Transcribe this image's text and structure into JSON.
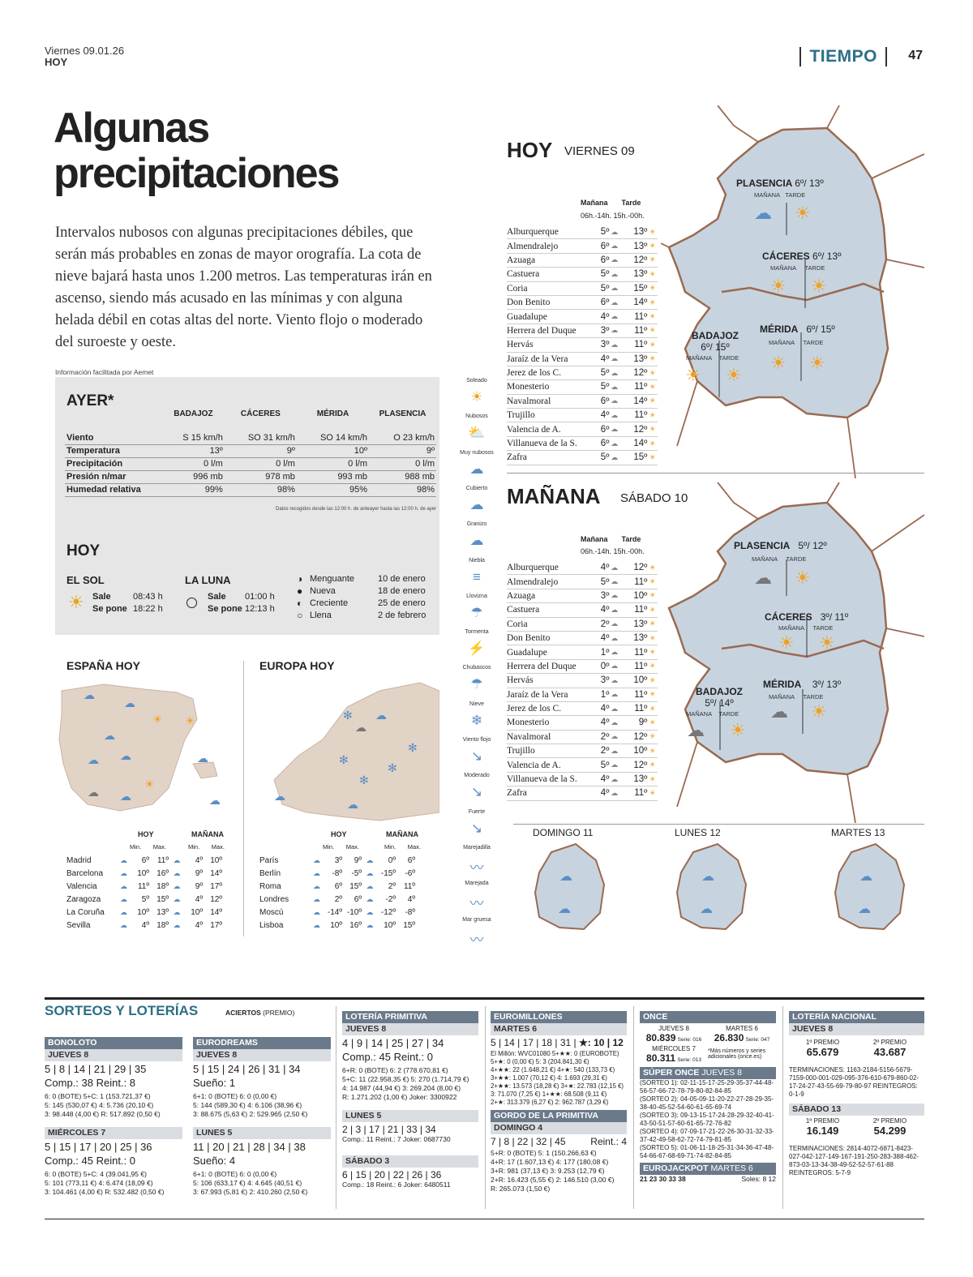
{
  "header": {
    "date": "Viernes 09.01.26",
    "paper": "HOY",
    "section": "TIEMPO",
    "page": "47"
  },
  "headline": "Algunas precipitaciones",
  "intro": "Intervalos nubosos con algunas precipitaciones débiles, que serán más probables en zonas de mayor orografía. La cota de nieve bajará hasta unos 1.200 metros. Las temperaturas irán en ascenso, siendo más acusado en las mínimas y con alguna helada débil en cotas altas del norte. Viento flojo o moderado del suroeste y oeste.",
  "credit": "Información facilitada por Aemet",
  "ayer": {
    "title": "AYER*",
    "cols": [
      "BADAJOZ",
      "CÁCERES",
      "MÉRIDA",
      "PLASENCIA"
    ],
    "rows": [
      {
        "label": "Viento",
        "vals": [
          "S 15 km/h",
          "SO 31 km/h",
          "SO 14 km/h",
          "O 23 km/h"
        ]
      },
      {
        "label": "Temperatura",
        "vals": [
          "13º",
          "9º",
          "10º",
          "9º"
        ]
      },
      {
        "label": "Precipitación",
        "vals": [
          "0 l/m",
          "0 l/m",
          "0 l/m",
          "0 l/m"
        ]
      },
      {
        "label": "Presión n/mar",
        "vals": [
          "996 mb",
          "978 mb",
          "993 mb",
          "988 mb"
        ]
      },
      {
        "label": "Humedad relativa",
        "vals": [
          "99%",
          "98%",
          "95%",
          "98%"
        ]
      }
    ],
    "note": "Datos recogidos desde las 12:00 h. de anteayer hasta las 12:00 h. de ayer"
  },
  "hoy_box": {
    "title": "HOY",
    "sol_title": "EL SOL",
    "sale_lbl": "Sale",
    "sale": "08:43 h",
    "pone_lbl": "Se pone",
    "pone": "18:22 h",
    "luna_title": "LA LUNA",
    "l_sale": "01:00 h",
    "l_pone": "12:13 h",
    "phases": [
      {
        "name": "Menguante",
        "date": "10 de enero"
      },
      {
        "name": "Nueva",
        "date": "18 de enero"
      },
      {
        "name": "Creciente",
        "date": "25 de enero"
      },
      {
        "name": "Llena",
        "date": "2 de febrero"
      }
    ]
  },
  "espana": {
    "title": "ESPAÑA HOY",
    "hoy": "HOY",
    "manana": "MAÑANA",
    "min": "Min.",
    "max": "Max.",
    "rows": [
      [
        "Madrid",
        "6º",
        "11º",
        "4º",
        "10º"
      ],
      [
        "Barcelona",
        "10º",
        "16º",
        "9º",
        "14º"
      ],
      [
        "Valencia",
        "11º",
        "18º",
        "9º",
        "17º"
      ],
      [
        "Zaragoza",
        "5º",
        "15º",
        "4º",
        "12º"
      ],
      [
        "La Coruña",
        "10º",
        "13º",
        "10º",
        "14º"
      ],
      [
        "Sevilla",
        "4º",
        "18º",
        "4º",
        "17º"
      ]
    ]
  },
  "europa": {
    "title": "EUROPA HOY",
    "rows": [
      [
        "París",
        "3º",
        "9º",
        "0º",
        "6º"
      ],
      [
        "Berlín",
        "-8º",
        "-5º",
        "-15º",
        "-6º"
      ],
      [
        "Roma",
        "6º",
        "15º",
        "2º",
        "11º"
      ],
      [
        "Londres",
        "2º",
        "6º",
        "-2º",
        "4º"
      ],
      [
        "Moscú",
        "-14º",
        "-10º",
        "-12º",
        "-8º"
      ],
      [
        "Lisboa",
        "10º",
        "16º",
        "10º",
        "15º"
      ]
    ]
  },
  "legend": [
    "Soleado",
    "Nubosos",
    "Muy nubosos",
    "Cubierto",
    "Granizo",
    "Niebla",
    "Llovizna",
    "Tormenta",
    "Chubascos",
    "Nieve",
    "Viento flojo",
    "Moderado",
    "Fuerte",
    "Marejadilla",
    "Marejada",
    "Mar gruesa"
  ],
  "hoy_forecast": {
    "title": "HOY",
    "day": "VIERNES 09",
    "col1": "Mañana",
    "col2": "Tarde",
    "sub1": "06h.-14h.",
    "sub2": "15h.-00h.",
    "rows": [
      [
        "Alburquerque",
        "5º",
        "13º"
      ],
      [
        "Almendralejo",
        "6º",
        "13º"
      ],
      [
        "Azuaga",
        "6º",
        "12º"
      ],
      [
        "Castuera",
        "5º",
        "13º"
      ],
      [
        "Coria",
        "5º",
        "15º"
      ],
      [
        "Don Benito",
        "6º",
        "14º"
      ],
      [
        "Guadalupe",
        "4º",
        "11º"
      ],
      [
        "Herrera del Duque",
        "3º",
        "11º"
      ],
      [
        "Hervás",
        "3º",
        "11º"
      ],
      [
        "Jaraíz de la Vera",
        "4º",
        "13º"
      ],
      [
        "Jerez de los C.",
        "5º",
        "12º"
      ],
      [
        "Monesterio",
        "5º",
        "11º"
      ],
      [
        "Navalmoral",
        "6º",
        "14º"
      ],
      [
        "Trujillo",
        "4º",
        "11º"
      ],
      [
        "Valencia de A.",
        "6º",
        "12º"
      ],
      [
        "Villanueva de la S.",
        "6º",
        "14º"
      ],
      [
        "Zafra",
        "5º",
        "15º"
      ]
    ],
    "map": [
      {
        "city": "PLASENCIA",
        "temp": "6º/ 13º"
      },
      {
        "city": "CÁCERES",
        "temp": "6º/ 13º"
      },
      {
        "city": "BADAJOZ",
        "temp": "6º/ 15º"
      },
      {
        "city": "MÉRIDA",
        "temp": "6º/ 15º"
      }
    ]
  },
  "man_forecast": {
    "title": "MAÑANA",
    "day": "SÁBADO 10",
    "rows": [
      [
        "Alburquerque",
        "4º",
        "12º"
      ],
      [
        "Almendralejo",
        "5º",
        "11º"
      ],
      [
        "Azuaga",
        "3º",
        "10º"
      ],
      [
        "Castuera",
        "4º",
        "11º"
      ],
      [
        "Coria",
        "2º",
        "13º"
      ],
      [
        "Don Benito",
        "4º",
        "13º"
      ],
      [
        "Guadalupe",
        "1º",
        "11º"
      ],
      [
        "Herrera del Duque",
        "0º",
        "11º"
      ],
      [
        "Hervás",
        "3º",
        "10º"
      ],
      [
        "Jaraíz de la Vera",
        "1º",
        "11º"
      ],
      [
        "Jerez de los C.",
        "4º",
        "11º"
      ],
      [
        "Monesterio",
        "4º",
        "9º"
      ],
      [
        "Navalmoral",
        "2º",
        "12º"
      ],
      [
        "Trujillo",
        "2º",
        "10º"
      ],
      [
        "Valencia de A.",
        "5º",
        "12º"
      ],
      [
        "Villanueva de la S.",
        "4º",
        "13º"
      ],
      [
        "Zafra",
        "4º",
        "11º"
      ]
    ],
    "map": [
      {
        "city": "PLASENCIA",
        "temp": "5º/ 12º"
      },
      {
        "city": "CÁCERES",
        "temp": "3º/ 11º"
      },
      {
        "city": "BADAJOZ",
        "temp": "5º/ 14º"
      },
      {
        "city": "MÉRIDA",
        "temp": "3º/ 13º"
      }
    ]
  },
  "map_labels": {
    "manana": "MAÑANA",
    "tarde": "TARDE"
  },
  "next_days": [
    "DOMINGO 11",
    "LUNES 12",
    "MARTES 13"
  ],
  "sorteos": {
    "title": "SORTEOS Y LOTERÍAS",
    "sub": "ACIERTOS",
    "sub2": "(PREMIO)",
    "bonoloto": {
      "head": "BONOLOTO",
      "d1": "JUEVES 8",
      "n1": "5 | 8 | 14 | 21 | 29 | 35",
      "c1": "Comp.: 38 Reint.: 8",
      "p1": [
        "6: 0 (BOTE) 5+C: 1 (153.721,37 €)",
        "5: 145 (530,07 €) 4: 5.736 (20,10 €)",
        "3: 98.448 (4,00 €) R: 517.892 (0,50 €)"
      ],
      "d2": "MIÉRCOLES 7",
      "n2": "5 | 15 | 17 | 20 | 25 | 36",
      "c2": "Comp.: 45 Reint.: 0",
      "p2": [
        "6: 0 (BOTE) 5+C: 4 (39.041,95 €)",
        "5: 101 (773,11 €) 4: 6.474 (18,09 €)",
        "3: 104.461 (4,00 €) R: 532.482 (0,50 €)"
      ]
    },
    "eurodreams": {
      "head": "EURODREAMS",
      "d1": "JUEVES 8",
      "n1": "5 | 15 | 24 | 26 | 31 | 34",
      "c1": "Sueño: 1",
      "p1": [
        "6+1: 0 (BOTE) 6: 0 (0,00 €)",
        "5: 144 (589,30 €) 4: 6.106 (38,96 €)",
        "3: 88.675 (5,63 €) 2: 529.965 (2,50 €)"
      ],
      "d2": "LUNES 5",
      "n2": "11 | 20 | 21 | 28 | 34 | 38",
      "c2": "Sueño: 4",
      "p2": [
        "6+1: 0 (BOTE) 6: 0 (0,00 €)",
        "5: 106 (633,17 €) 4: 4.645 (40,51 €)",
        "3: 67.993 (5,81 €) 2: 410.260 (2,50 €)"
      ]
    },
    "primitiva": {
      "head": "LOTERÍA PRIMITIVA",
      "d1": "JUEVES 8",
      "n1": "4 | 9 | 14 | 25 | 27 | 34",
      "c1": "Comp.: 45 Reint.: 0",
      "p1": [
        "6+R: 0 (BOTE) 6: 2 (778.670,81 €)",
        "5+C: 11 (22.958,35 €) 5: 270 (1.714,79 €)",
        "4: 14.987 (44,94 €) 3: 269.204 (8,00 €)",
        "R: 1.271.202 (1,00 €) Joker: 3300922"
      ],
      "d2": "LUNES 5",
      "n2": "2 | 3 | 17 | 21 | 33 | 34",
      "c2": "Comp.: 11 Reint.: 7 Joker: 0687730",
      "d3": "SÁBADO 3",
      "n3": "6 | 15 | 20 | 22 | 26 | 36",
      "c3": "Comp.: 18 Reint.: 6 Joker: 6480511"
    },
    "euromillones": {
      "head": "EUROMILLONES",
      "d1": "MARTES 6",
      "n1": "5 | 14 | 17 | 18 | 31 |",
      "stars": "★: 10 | 12",
      "p1": [
        "El Millón: WVC01080 5+★★: 0 (EUROBOTE)",
        "5+★: 0 (0,00 €) 5: 3 (204.841,30 €)",
        "4+★★: 22 (1.648,21 €) 4+★: 540 (133,73 €)",
        "3+★★: 1.007 (70,12 €) 4: 1.693 (29,31 €)",
        "2+★★: 13.573 (18,28 €) 3+★: 22.783 (12,15 €)",
        "3: 71.070 (7,25 €) 1+★★: 68.508 (9,11 €)",
        "2+★: 313.379 (6,27 €) 2: 962.787 (3,29 €)"
      ],
      "gordo_head": "GORDO DE LA PRIMITIVA",
      "gd": "DOMINGO 4",
      "gn": "7 | 8 | 22 | 32 | 45",
      "gr": "Reint.: 4",
      "gp": [
        "5+R: 0 (BOTE) 5: 1 (150.266,63 €)",
        "4+R: 17 (1.607,13 €) 4: 177 (180,08 €)",
        "3+R: 981 (37,13 €) 3: 9.253 (12,79 €)",
        "2+R: 16.423 (5,55 €) 2: 146.510 (3,00 €)",
        "R: 265.073 (1,50 €)"
      ]
    },
    "once": {
      "head": "ONCE",
      "d1": "JUEVES 8",
      "n1": "80.839",
      "s1": "Serie: 016",
      "d2": "MARTES 6",
      "n2": "26.830",
      "s2": "Serie: 047",
      "d3": "MIÉRCOLES 7",
      "n3": "80.311",
      "s3": "Serie: 013",
      "note": "*Más números y series adicionales (once.es)",
      "super_head": "SÚPER ONCE",
      "super_day": "JUEVES 8",
      "sorteos": [
        "(SORTEO 1): 02-11-15-17-25-29-35-37-44-48-56-57-66-72-78-79-80-82-84-85",
        "(SORTEO 2): 04-05-09-11-20-22-27-28-29-35-38-40-45-52-54-60-61-65-69-74",
        "(SORTEO 3): 09-13-15-17-24-28-29-32-40-41-43-50-51-57-60-61-65-72-76-82",
        "(SORTEO 4): 07-09-17-21-22-26-30-31-32-33-37-42-49-58-62-72-74-79-81-85",
        "(SORTEO 5): 01-06-11-18-25-31-34-36-47-48-54-66-67-68-69-71-74-82-84-85"
      ],
      "ej_head": "EUROJACKPOT",
      "ej_day": "MARTES 6",
      "ej_nums": "21  23  30  33  38",
      "ej_soles": "Soles: 8  12"
    },
    "nacional": {
      "head": "LOTERÍA NACIONAL",
      "d1": "JUEVES 8",
      "p1l": "1º PREMIO",
      "p1": "65.679",
      "p2l": "2º PREMIO",
      "p2": "43.687",
      "t1": "TERMINACIONES: 1163-2184-5156-5679-7159-000-001-029-095-376-610-679-860-02-17-24-27-43-55-69-79-80-97 REINTEGROS: 0-1-9",
      "d2": "SÁBADO 13",
      "p3": "16.149",
      "p4": "54.299",
      "t2": "TERMINACIONES: 2814-4072-6871-8423-027-042-127-149-167-191-250-283-388-462-873-03-13-34-38-49-52-52-57-61-88 REINTEGROS: 5-7-9"
    }
  }
}
